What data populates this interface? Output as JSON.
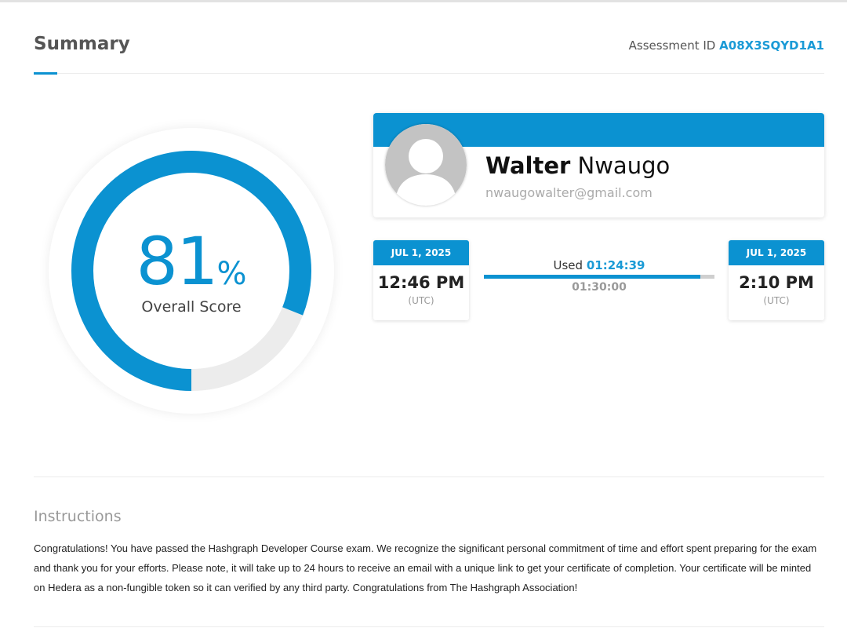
{
  "header": {
    "title": "Summary",
    "assessment_label": "Assessment ID",
    "assessment_id": "A08X3SQYD1A1"
  },
  "score": {
    "value": "81",
    "unit": "%",
    "label": "Overall Score",
    "fraction": 0.81,
    "colors": {
      "accent": "#0b92d1",
      "track": "#ececec"
    }
  },
  "profile": {
    "first_name": "Walter",
    "last_name": "Nwaugo",
    "email": "nwaugowalter@gmail.com",
    "avatar_icon": "user-silhouette-icon"
  },
  "timing": {
    "start": {
      "date": "JUL 1, 2025",
      "time": "12:46 PM",
      "zone": "(UTC)"
    },
    "end": {
      "date": "JUL 1, 2025",
      "time": "2:10 PM",
      "zone": "(UTC)"
    },
    "used_label": "Used",
    "used_value": "01:24:39",
    "total": "01:30:00",
    "used_fraction": 0.94
  },
  "instructions": {
    "title": "Instructions",
    "text": "Congratulations! You have passed the Hashgraph Developer Course exam. We recognize the significant personal commitment of time and effort spent preparing for the exam and thank you for your efforts. Please note, it will take up to 24 hours to receive an email with a unique link to get your certificate of completion. Your certificate will be minted on Hedera as a non-fungible token so it can verified by any third party. Congratulations from The Hashgraph Association!"
  }
}
